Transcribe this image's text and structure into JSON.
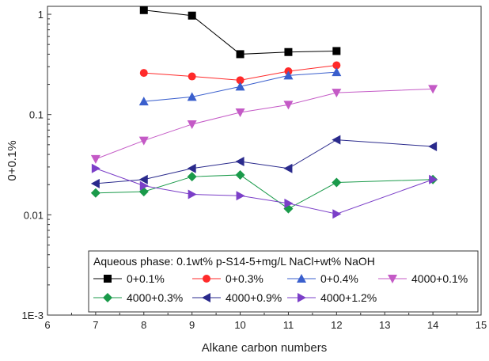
{
  "chart_data": {
    "type": "line",
    "title": "",
    "xlabel": "Alkane carbon numbers",
    "ylabel": "0+0.1%",
    "y_scale": "log",
    "xlim": [
      6,
      15
    ],
    "ylim": [
      0.001,
      1.2
    ],
    "x_ticks": [
      "6",
      "7",
      "8",
      "9",
      "10",
      "11",
      "12",
      "13",
      "14",
      "15"
    ],
    "y_ticks": [
      {
        "value": 1,
        "label": "1"
      },
      {
        "value": 0.1,
        "label": "0.1"
      },
      {
        "value": 0.01,
        "label": "0.01"
      },
      {
        "value": 0.001,
        "label": "1E-3"
      }
    ],
    "legend": {
      "title": "Aqueous phase: 0.1wt% p-S14-5+mg/L NaCl+wt% NaOH",
      "placement": "bottom-right"
    },
    "series": [
      {
        "name": "0+0.1%",
        "color": "#000000",
        "marker": "square",
        "x": [
          8,
          9,
          10,
          11,
          12
        ],
        "values": [
          1.1,
          0.97,
          0.4,
          0.42,
          0.43
        ]
      },
      {
        "name": "0+0.3%",
        "color": "#ff2a2a",
        "marker": "circle",
        "x": [
          8,
          9,
          10,
          11,
          12
        ],
        "values": [
          0.26,
          0.24,
          0.22,
          0.27,
          0.31
        ]
      },
      {
        "name": "0+0.4%",
        "color": "#3a5fcd",
        "marker": "triangle-up",
        "x": [
          8,
          9,
          10,
          11,
          12
        ],
        "values": [
          0.135,
          0.15,
          0.19,
          0.245,
          0.265
        ]
      },
      {
        "name": "4000+0.1%",
        "color": "#c45ac6",
        "marker": "triangle-down",
        "x": [
          7,
          8,
          9,
          10,
          11,
          12,
          14
        ],
        "values": [
          0.036,
          0.055,
          0.08,
          0.105,
          0.125,
          0.165,
          0.18
        ]
      },
      {
        "name": "4000+0.3%",
        "color": "#1a9a4a",
        "marker": "diamond",
        "x": [
          7,
          8,
          9,
          10,
          11,
          12,
          14
        ],
        "values": [
          0.0165,
          0.017,
          0.024,
          0.025,
          0.0115,
          0.021,
          0.0225
        ]
      },
      {
        "name": "4000+0.9%",
        "color": "#2a2a8c",
        "marker": "triangle-left",
        "x": [
          7,
          8,
          9,
          10,
          11,
          12,
          14
        ],
        "values": [
          0.0205,
          0.0225,
          0.029,
          0.034,
          0.029,
          0.056,
          0.048
        ]
      },
      {
        "name": "4000+1.2%",
        "color": "#7b3fc8",
        "marker": "triangle-right",
        "x": [
          7,
          8,
          9,
          10,
          11,
          12,
          14
        ],
        "values": [
          0.029,
          0.0195,
          0.016,
          0.0155,
          0.013,
          0.0102,
          0.0225
        ]
      }
    ]
  }
}
